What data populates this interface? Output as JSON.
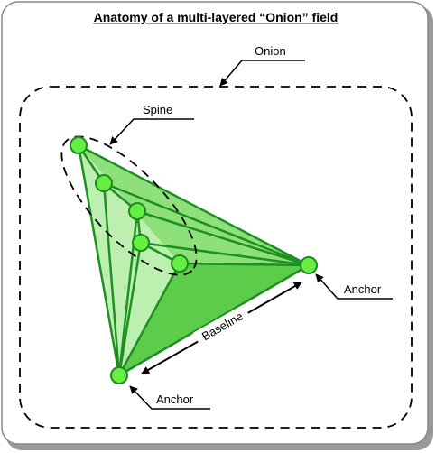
{
  "title": "Anatomy of a multi-layered “Onion” field",
  "labels": {
    "onion": "Onion",
    "spine": "Spine",
    "anchor_right": "Anchor",
    "anchor_bottom": "Anchor",
    "baseline": "Baseline"
  },
  "colors": {
    "node_fill": "#66ee44",
    "node_stroke": "#1f8a1f",
    "line": "#1e8f22",
    "face_light": "#bdf0b0",
    "face_mid": "#8ee07a",
    "face_dark": "#5ccc4a",
    "frame_shadow": "#9a9a9a"
  }
}
